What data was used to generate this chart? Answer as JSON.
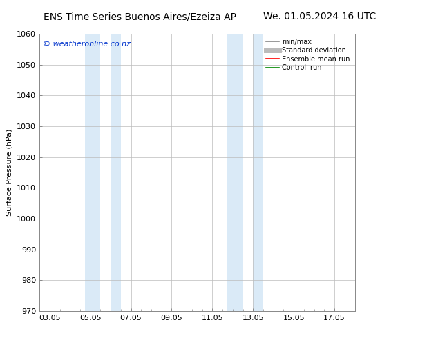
{
  "title_left": "ENS Time Series Buenos Aires/Ezeiza AP",
  "title_right": "We. 01.05.2024 16 UTC",
  "ylabel": "Surface Pressure (hPa)",
  "ylim": [
    970,
    1060
  ],
  "yticks": [
    970,
    980,
    990,
    1000,
    1010,
    1020,
    1030,
    1040,
    1050,
    1060
  ],
  "xticks_labels": [
    "03.05",
    "05.05",
    "07.05",
    "09.05",
    "11.05",
    "13.05",
    "15.05",
    "17.05"
  ],
  "xticks_values": [
    0,
    2,
    4,
    6,
    8,
    10,
    12,
    14
  ],
  "xlim": [
    -0.5,
    15.0
  ],
  "shade_bands": [
    {
      "x_start": 1.75,
      "x_end": 2.5,
      "color": "#daeaf7"
    },
    {
      "x_start": 3.0,
      "x_end": 3.5,
      "color": "#daeaf7"
    },
    {
      "x_start": 8.75,
      "x_end": 9.5,
      "color": "#daeaf7"
    },
    {
      "x_start": 10.0,
      "x_end": 10.5,
      "color": "#daeaf7"
    }
  ],
  "watermark_text": "© weatheronline.co.nz",
  "watermark_color": "#0033cc",
  "watermark_fontsize": 8,
  "legend_entries": [
    {
      "label": "min/max",
      "color": "#888888",
      "lw": 1.2
    },
    {
      "label": "Standard deviation",
      "color": "#bbbbbb",
      "lw": 5
    },
    {
      "label": "Ensemble mean run",
      "color": "#ff0000",
      "lw": 1.2
    },
    {
      "label": "Controll run",
      "color": "#008800",
      "lw": 1.2
    }
  ],
  "background_color": "#ffffff",
  "grid_color": "#bbbbbb",
  "title_fontsize": 10,
  "axis_fontsize": 8,
  "tick_fontsize": 8
}
